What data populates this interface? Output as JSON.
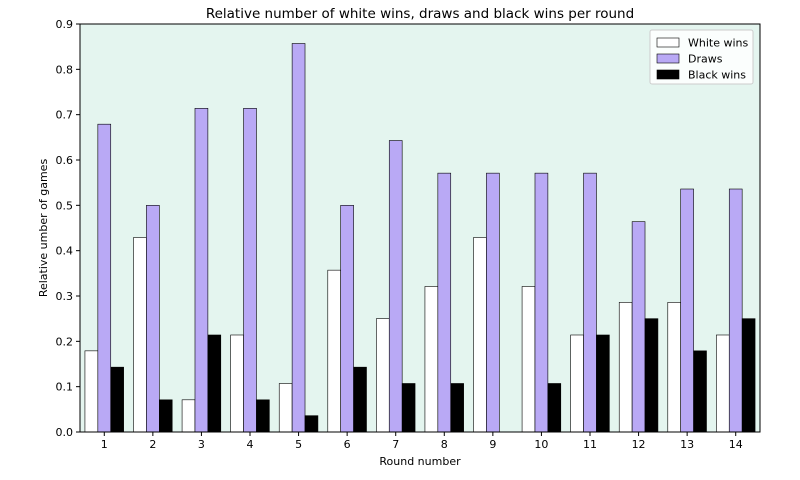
{
  "chart_data": {
    "type": "bar",
    "title": "Relative number of white wins, draws and black wins per round",
    "xlabel": "Round number",
    "ylabel": "Relative umber of games",
    "categories": [
      "1",
      "2",
      "3",
      "4",
      "5",
      "6",
      "7",
      "8",
      "9",
      "10",
      "11",
      "12",
      "13",
      "14"
    ],
    "ylim": [
      0,
      0.9
    ],
    "yticks": [
      "0.0",
      "0.1",
      "0.2",
      "0.3",
      "0.4",
      "0.5",
      "0.6",
      "0.7",
      "0.8",
      "0.9"
    ],
    "grid": false,
    "legend_position": "top-right",
    "background_color": "#e4f5ef",
    "series": [
      {
        "name": "White wins",
        "color": "#ffffff",
        "values": [
          0.179,
          0.429,
          0.071,
          0.214,
          0.107,
          0.357,
          0.25,
          0.321,
          0.429,
          0.321,
          0.214,
          0.286,
          0.286,
          0.214
        ]
      },
      {
        "name": "Draws",
        "color": "#b9a9f5",
        "values": [
          0.679,
          0.5,
          0.714,
          0.714,
          0.857,
          0.5,
          0.643,
          0.571,
          0.571,
          0.571,
          0.571,
          0.464,
          0.536,
          0.536
        ]
      },
      {
        "name": "Black wins",
        "color": "#000000",
        "values": [
          0.143,
          0.071,
          0.214,
          0.071,
          0.036,
          0.143,
          0.107,
          0.107,
          0.0,
          0.107,
          0.214,
          0.25,
          0.179,
          0.25
        ]
      }
    ]
  }
}
